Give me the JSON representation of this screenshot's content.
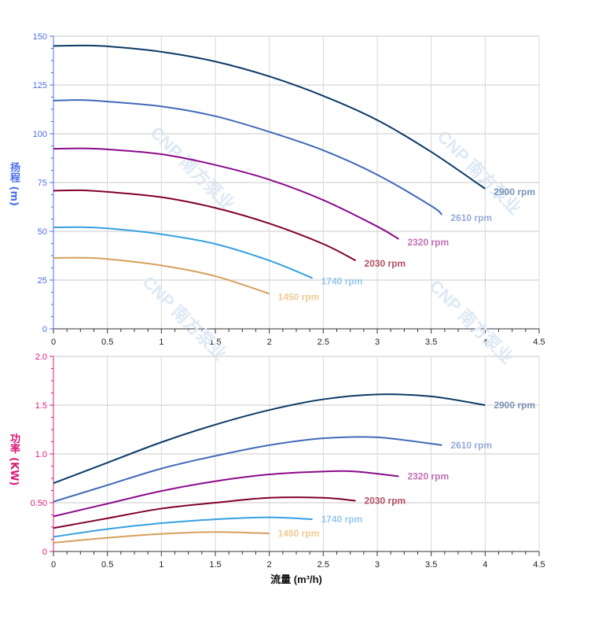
{
  "chart_data": [
    {
      "type": "line",
      "ylabel": "扬程 (m)",
      "xlim": [
        0,
        4.5
      ],
      "ylim": [
        0,
        150
      ],
      "xticks": [
        "0",
        "0.5",
        "1",
        "1.5",
        "2",
        "2.5",
        "3",
        "3.5",
        "4",
        "4.5"
      ],
      "yticks": [
        "0",
        "25",
        "50",
        "75",
        "100",
        "125",
        "150"
      ],
      "grid": true,
      "axis_color": "#4a6ee8",
      "watermark": "CNP 南方泵业",
      "series": [
        {
          "name": "2900 rpm",
          "color": "#0b3a66",
          "label_color": "#7b93b5",
          "x": [
            0,
            0.25,
            0.5,
            1,
            1.5,
            2,
            2.5,
            3,
            3.5,
            4
          ],
          "y": [
            145,
            145.2,
            144.8,
            142,
            137,
            129.4,
            119.4,
            107,
            90.7,
            71.8
          ]
        },
        {
          "name": "2610 rpm",
          "color": "#4169b8",
          "label_color": "#94acd8",
          "x": [
            0,
            0.25,
            0.5,
            1,
            1.5,
            2,
            2.5,
            3,
            3.5,
            3.6
          ],
          "y": [
            117,
            117.3,
            116.5,
            114,
            109,
            101,
            91.5,
            79,
            63,
            58.5
          ]
        },
        {
          "name": "2320 rpm",
          "color": "#8b0a8b",
          "label_color": "#c370b5",
          "x": [
            0,
            0.25,
            0.5,
            1,
            1.5,
            2,
            2.5,
            3,
            3.2
          ],
          "y": [
            92.3,
            92.5,
            92,
            89.5,
            84,
            76.5,
            66,
            52.5,
            46
          ]
        },
        {
          "name": "2030 rpm",
          "color": "#80002e",
          "label_color": "#b35064",
          "x": [
            0,
            0.25,
            0.5,
            1,
            1.5,
            2,
            2.5,
            2.8
          ],
          "y": [
            70.8,
            71,
            70.2,
            67.5,
            62,
            54,
            43.5,
            35
          ]
        },
        {
          "name": "1740 rpm",
          "color": "#36a0e0",
          "label_color": "#92c9f0",
          "x": [
            0,
            0.25,
            0.5,
            1,
            1.5,
            2,
            2.4
          ],
          "y": [
            52,
            52.1,
            51.5,
            48.5,
            43.5,
            35,
            26
          ]
        },
        {
          "name": "1450 rpm",
          "color": "#d6a05e",
          "label_color": "#f0c992",
          "x": [
            0,
            0.25,
            0.5,
            1,
            1.5,
            2
          ],
          "y": [
            36.3,
            36.4,
            35.8,
            32.5,
            27,
            18
          ]
        }
      ]
    },
    {
      "type": "line",
      "ylabel": "功率 (KW)",
      "xlabel": "流量 (m³/h)",
      "xlim": [
        0,
        4.5
      ],
      "ylim": [
        0,
        2.0
      ],
      "xticks": [
        "0",
        "0.5",
        "1",
        "1.5",
        "2",
        "2.5",
        "3",
        "3.5",
        "4",
        "4.5"
      ],
      "yticks": [
        "0",
        "0.50",
        "1.0",
        "1.5",
        "2.0"
      ],
      "grid": true,
      "axis_color": "#d81b7a",
      "watermark": "CNP 南方泵业",
      "series": [
        {
          "name": "2900 rpm",
          "color": "#0b3a66",
          "label_color": "#7b93b5",
          "x": [
            0,
            0.5,
            1,
            1.5,
            2,
            2.5,
            3,
            3.5,
            4
          ],
          "y": [
            0.7,
            0.91,
            1.12,
            1.3,
            1.45,
            1.56,
            1.61,
            1.59,
            1.5
          ]
        },
        {
          "name": "2610 rpm",
          "color": "#4169b8",
          "label_color": "#94acd8",
          "x": [
            0,
            0.5,
            1,
            1.5,
            2,
            2.5,
            3,
            3.6
          ],
          "y": [
            0.51,
            0.68,
            0.85,
            0.98,
            1.09,
            1.16,
            1.17,
            1.09
          ]
        },
        {
          "name": "2320 rpm",
          "color": "#8b0a8b",
          "label_color": "#c370b5",
          "x": [
            0,
            0.5,
            1,
            1.5,
            2,
            2.5,
            2.8,
            3.2
          ],
          "y": [
            0.36,
            0.49,
            0.62,
            0.72,
            0.79,
            0.82,
            0.82,
            0.77
          ]
        },
        {
          "name": "2030 rpm",
          "color": "#80002e",
          "label_color": "#b35064",
          "x": [
            0,
            0.5,
            1,
            1.5,
            2,
            2.5,
            2.8
          ],
          "y": [
            0.24,
            0.34,
            0.44,
            0.5,
            0.55,
            0.55,
            0.52
          ]
        },
        {
          "name": "1740 rpm",
          "color": "#36a0e0",
          "label_color": "#92c9f0",
          "x": [
            0,
            0.5,
            1,
            1.5,
            2,
            2.4
          ],
          "y": [
            0.15,
            0.23,
            0.29,
            0.33,
            0.35,
            0.33
          ]
        },
        {
          "name": "1450 rpm",
          "color": "#d6a05e",
          "label_color": "#f0c992",
          "x": [
            0,
            0.5,
            1,
            1.5,
            2
          ],
          "y": [
            0.09,
            0.14,
            0.18,
            0.2,
            0.185
          ]
        }
      ]
    }
  ]
}
